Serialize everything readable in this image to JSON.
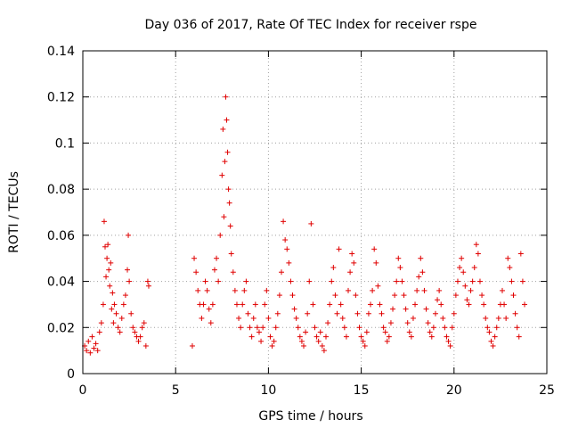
{
  "chart_data": {
    "type": "scatter",
    "title": "Day 036 of 2017, Rate Of TEC Index for receiver rspe",
    "xlabel": "GPS time / hours",
    "ylabel": "ROTI / TECUs",
    "xlim": [
      0,
      25
    ],
    "ylim": [
      0,
      0.14
    ],
    "xticks": [
      0,
      5,
      10,
      15,
      20,
      25
    ],
    "xtick_labels": [
      "0",
      "5",
      "10",
      "15",
      "20",
      "25"
    ],
    "yticks": [
      0,
      0.02,
      0.04,
      0.06,
      0.08,
      0.1,
      0.12,
      0.14
    ],
    "ytick_labels": [
      "0",
      "0.02",
      "0.04",
      "0.06",
      "0.08",
      "0.1",
      "0.12",
      "0.14"
    ],
    "grid": true,
    "marker": "+",
    "color": "#e00000",
    "series": [
      {
        "name": "ROTI",
        "x": [
          0.1,
          0.2,
          0.3,
          0.4,
          0.5,
          0.6,
          0.7,
          0.8,
          0.9,
          1.0,
          1.1,
          1.15,
          1.2,
          1.25,
          1.3,
          1.35,
          1.4,
          1.45,
          1.5,
          1.55,
          1.6,
          1.65,
          1.7,
          1.8,
          1.9,
          2.0,
          2.1,
          2.2,
          2.3,
          2.4,
          2.45,
          2.5,
          2.6,
          2.7,
          2.8,
          2.9,
          3.0,
          3.1,
          3.2,
          3.3,
          3.4,
          3.5,
          3.55,
          5.9,
          6.0,
          6.1,
          6.2,
          6.3,
          6.4,
          6.5,
          6.6,
          6.7,
          6.8,
          6.9,
          7.0,
          7.1,
          7.2,
          7.3,
          7.4,
          7.5,
          7.55,
          7.6,
          7.65,
          7.7,
          7.75,
          7.8,
          7.85,
          7.9,
          7.95,
          8.0,
          8.1,
          8.2,
          8.3,
          8.4,
          8.5,
          8.6,
          8.7,
          8.8,
          8.9,
          9.0,
          9.1,
          9.2,
          9.3,
          9.4,
          9.5,
          9.6,
          9.7,
          9.8,
          9.9,
          10.0,
          10.1,
          10.2,
          10.3,
          10.4,
          10.5,
          10.6,
          10.7,
          10.8,
          10.9,
          11.0,
          11.1,
          11.2,
          11.3,
          11.4,
          11.5,
          11.6,
          11.7,
          11.8,
          11.9,
          12.0,
          12.1,
          12.2,
          12.3,
          12.4,
          12.5,
          12.6,
          12.7,
          12.8,
          12.9,
          13.0,
          13.1,
          13.2,
          13.3,
          13.4,
          13.5,
          13.6,
          13.7,
          13.8,
          13.9,
          14.0,
          14.1,
          14.2,
          14.3,
          14.4,
          14.5,
          14.6,
          14.7,
          14.8,
          14.9,
          15.0,
          15.1,
          15.2,
          15.3,
          15.4,
          15.5,
          15.6,
          15.7,
          15.8,
          15.9,
          16.0,
          16.1,
          16.2,
          16.3,
          16.4,
          16.5,
          16.6,
          16.7,
          16.8,
          16.9,
          17.0,
          17.1,
          17.2,
          17.3,
          17.4,
          17.5,
          17.6,
          17.7,
          17.8,
          17.9,
          18.0,
          18.1,
          18.2,
          18.3,
          18.4,
          18.5,
          18.6,
          18.7,
          18.8,
          18.9,
          19.0,
          19.1,
          19.2,
          19.3,
          19.4,
          19.5,
          19.6,
          19.7,
          19.8,
          19.9,
          20.0,
          20.1,
          20.2,
          20.3,
          20.4,
          20.5,
          20.6,
          20.7,
          20.8,
          20.9,
          21.0,
          21.1,
          21.2,
          21.3,
          21.4,
          21.5,
          21.6,
          21.7,
          21.8,
          21.9,
          22.0,
          22.1,
          22.2,
          22.3,
          22.4,
          22.5,
          22.6,
          22.7,
          22.8,
          22.9,
          23.0,
          23.1,
          23.2,
          23.3,
          23.4,
          23.5,
          23.6,
          23.7,
          23.8
        ],
        "y": [
          0.012,
          0.01,
          0.014,
          0.009,
          0.016,
          0.011,
          0.013,
          0.01,
          0.018,
          0.022,
          0.03,
          0.066,
          0.055,
          0.042,
          0.05,
          0.056,
          0.045,
          0.038,
          0.048,
          0.028,
          0.035,
          0.022,
          0.03,
          0.026,
          0.02,
          0.018,
          0.024,
          0.03,
          0.034,
          0.045,
          0.06,
          0.04,
          0.026,
          0.02,
          0.018,
          0.016,
          0.014,
          0.016,
          0.02,
          0.022,
          0.012,
          0.04,
          0.038,
          0.012,
          0.05,
          0.044,
          0.036,
          0.03,
          0.024,
          0.03,
          0.04,
          0.036,
          0.028,
          0.022,
          0.03,
          0.045,
          0.05,
          0.04,
          0.06,
          0.086,
          0.106,
          0.068,
          0.092,
          0.12,
          0.11,
          0.096,
          0.08,
          0.074,
          0.064,
          0.052,
          0.044,
          0.036,
          0.03,
          0.024,
          0.02,
          0.03,
          0.036,
          0.04,
          0.026,
          0.02,
          0.016,
          0.024,
          0.03,
          0.02,
          0.018,
          0.014,
          0.02,
          0.03,
          0.036,
          0.024,
          0.016,
          0.012,
          0.014,
          0.02,
          0.026,
          0.034,
          0.044,
          0.066,
          0.058,
          0.054,
          0.048,
          0.04,
          0.034,
          0.028,
          0.024,
          0.02,
          0.016,
          0.014,
          0.012,
          0.018,
          0.026,
          0.04,
          0.065,
          0.03,
          0.02,
          0.016,
          0.014,
          0.018,
          0.012,
          0.01,
          0.016,
          0.022,
          0.03,
          0.04,
          0.046,
          0.034,
          0.026,
          0.054,
          0.03,
          0.024,
          0.02,
          0.016,
          0.036,
          0.044,
          0.052,
          0.048,
          0.034,
          0.026,
          0.02,
          0.016,
          0.014,
          0.012,
          0.018,
          0.026,
          0.03,
          0.036,
          0.054,
          0.048,
          0.038,
          0.03,
          0.026,
          0.02,
          0.018,
          0.014,
          0.016,
          0.022,
          0.028,
          0.034,
          0.04,
          0.05,
          0.046,
          0.04,
          0.034,
          0.028,
          0.022,
          0.018,
          0.016,
          0.024,
          0.03,
          0.036,
          0.042,
          0.05,
          0.044,
          0.036,
          0.028,
          0.022,
          0.018,
          0.016,
          0.02,
          0.026,
          0.032,
          0.036,
          0.03,
          0.024,
          0.02,
          0.016,
          0.014,
          0.012,
          0.02,
          0.026,
          0.034,
          0.04,
          0.046,
          0.05,
          0.044,
          0.038,
          0.032,
          0.03,
          0.036,
          0.04,
          0.046,
          0.056,
          0.052,
          0.04,
          0.034,
          0.03,
          0.024,
          0.02,
          0.018,
          0.014,
          0.012,
          0.016,
          0.02,
          0.024,
          0.03,
          0.036,
          0.03,
          0.024,
          0.05,
          0.046,
          0.04,
          0.034,
          0.026,
          0.02,
          0.016,
          0.052,
          0.04,
          0.03
        ]
      }
    ]
  }
}
